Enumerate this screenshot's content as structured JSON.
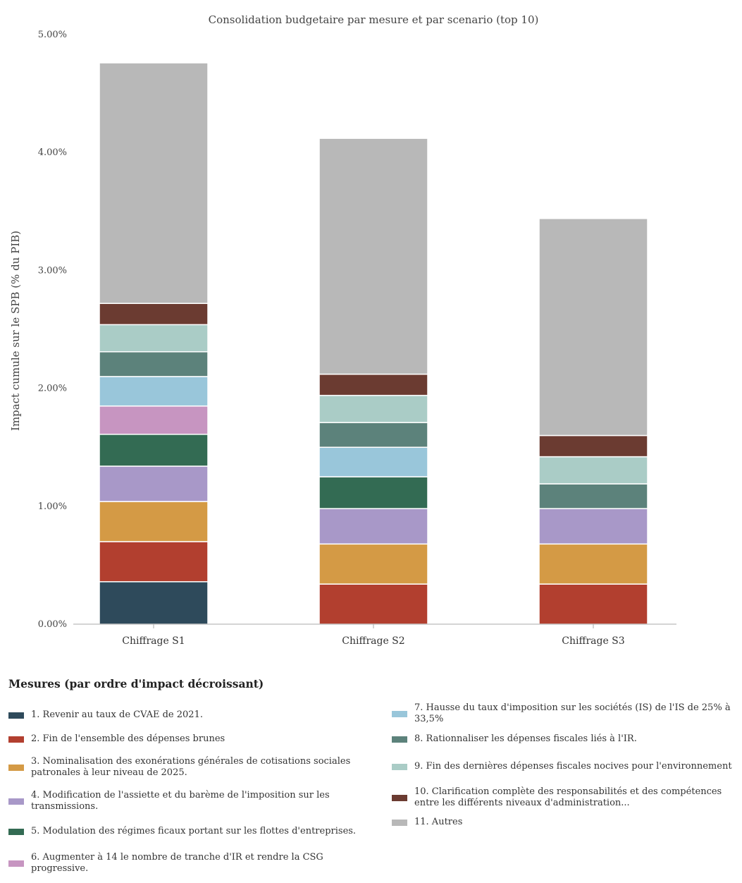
{
  "chart_data": {
    "type": "bar",
    "stacked": true,
    "title": "Consolidation budgetaire par mesure et par scenario (top 10)",
    "ylabel": "Impact cumule sur le SPB (% du PIB)",
    "xlabel": "",
    "ylim": [
      0,
      5
    ],
    "yticks": [
      "0.00%",
      "1.00%",
      "2.00%",
      "3.00%",
      "4.00%",
      "5.00%"
    ],
    "categories": [
      "Chiffrage S1",
      "Chiffrage S2",
      "Chiffrage S3"
    ],
    "legend_title": "Mesures (par ordre d'impact décroissant)",
    "legend_position": "bottom",
    "series": [
      {
        "name": "1. Revenir au taux de CVAE de 2021.",
        "color": "#2e4a5b",
        "values": [
          0.36,
          0,
          0
        ]
      },
      {
        "name": "2. Fin de l'ensemble des dépenses brunes",
        "color": "#b23f2f",
        "values": [
          0.34,
          0.34,
          0.34
        ]
      },
      {
        "name": "3. Nominalisation des exonérations générales de cotisations sociales patronales à leur niveau de 2025.",
        "color": "#d49a45",
        "values": [
          0.34,
          0.34,
          0.34
        ]
      },
      {
        "name": "4. Modification de l'assiette et du barème de l'imposition sur les transmissions.",
        "color": "#a898c8",
        "values": [
          0.3,
          0.3,
          0.3
        ]
      },
      {
        "name": "5. Modulation des régimes ficaux portant sur les flottes d'entreprises.",
        "color": "#336b53",
        "values": [
          0.27,
          0.27,
          0
        ]
      },
      {
        "name": "6. Augmenter à 14 le nombre de tranche d'IR et rendre la CSG progressive.",
        "color": "#c795c1",
        "values": [
          0.24,
          0,
          0
        ]
      },
      {
        "name": "7. Hausse du taux d'imposition sur les sociétés (IS) de l'IS de 25% à 33,5%",
        "color": "#99c6da",
        "values": [
          0.25,
          0.25,
          0
        ]
      },
      {
        "name": "8. Rationnaliser les dépenses fiscales liés à l'IR.",
        "color": "#5c827b",
        "values": [
          0.21,
          0.21,
          0.21
        ]
      },
      {
        "name": "9. Fin des dernières dépenses fiscales nocives pour l'environnement",
        "color": "#aaccc6",
        "values": [
          0.23,
          0.23,
          0.23
        ]
      },
      {
        "name": "10. Clarification complète des responsabilités et des compétences entre les différents niveaux d'administration...",
        "color": "#6b3b31",
        "values": [
          0.18,
          0.18,
          0.18
        ]
      },
      {
        "name": "11. Autres",
        "color": "#b8b8b8",
        "values": [
          2.04,
          2.0,
          1.84
        ]
      }
    ]
  }
}
